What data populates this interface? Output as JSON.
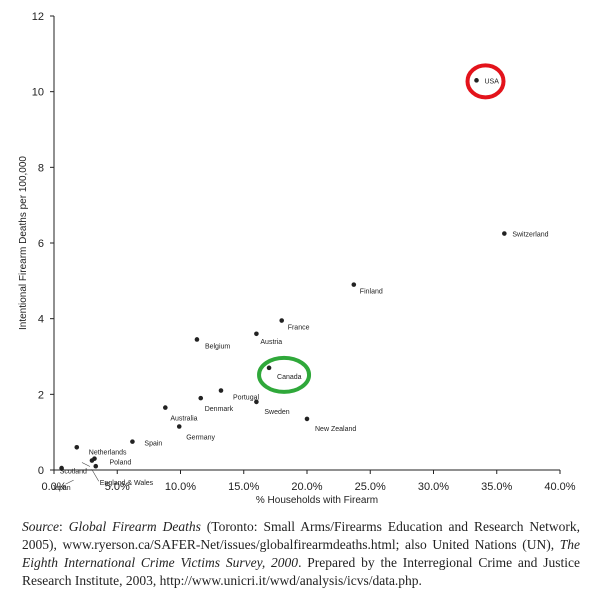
{
  "chart_data": {
    "type": "scatter",
    "xlabel": "% Households with Firearm",
    "ylabel": "Intentional Firearm Deaths per 100,000",
    "xlim": [
      0,
      40
    ],
    "ylim": [
      0,
      12
    ],
    "x_ticks": [
      "0.0%",
      "5.0%",
      "10.0%",
      "15.0%",
      "20.0%",
      "25.0%",
      "30.0%",
      "35.0%",
      "40.0%"
    ],
    "y_ticks": [
      "0",
      "2",
      "4",
      "6",
      "8",
      "10",
      "12"
    ],
    "grid": false,
    "points": [
      {
        "label": "USA",
        "x": 33.4,
        "y": 10.3,
        "highlight": "red"
      },
      {
        "label": "Switzerland",
        "x": 35.6,
        "y": 6.25
      },
      {
        "label": "Finland",
        "x": 23.7,
        "y": 4.9
      },
      {
        "label": "France",
        "x": 18.0,
        "y": 3.95
      },
      {
        "label": "Austria",
        "x": 16.0,
        "y": 3.6
      },
      {
        "label": "Belgium",
        "x": 11.3,
        "y": 3.45
      },
      {
        "label": "Canada",
        "x": 17.0,
        "y": 2.7,
        "highlight": "green"
      },
      {
        "label": "Portugal",
        "x": 13.2,
        "y": 2.1
      },
      {
        "label": "Denmark",
        "x": 11.6,
        "y": 1.9
      },
      {
        "label": "Sweden",
        "x": 16.0,
        "y": 1.8
      },
      {
        "label": "Australia",
        "x": 8.8,
        "y": 1.65
      },
      {
        "label": "New Zealand",
        "x": 20.0,
        "y": 1.35
      },
      {
        "label": "Germany",
        "x": 9.9,
        "y": 1.15
      },
      {
        "label": "Spain",
        "x": 6.2,
        "y": 0.75
      },
      {
        "label": "Netherlands",
        "x": 1.8,
        "y": 0.6
      },
      {
        "label": "Poland",
        "x": 3.2,
        "y": 0.3
      },
      {
        "label": "Scotland",
        "x": 3.0,
        "y": 0.25
      },
      {
        "label": "England & Wales",
        "x": 3.3,
        "y": 0.1
      },
      {
        "label": "Japan",
        "x": 0.6,
        "y": 0.05
      }
    ],
    "colors": {
      "red_circle": "#e3131b",
      "green_circle": "#2fa83a",
      "points": "#222222"
    }
  },
  "source": {
    "prefix": "Source",
    "title1": "Global Firearm Deaths",
    "text1": " (Toronto: Small Arms/Firearms Education and Research Network, 2005), www.ryerson.ca/SAFER-Net/issues/globalfirearmdeaths.html; also United Nations (UN), ",
    "title2": "The Eighth International Crime Victims Survey, 2000",
    "text2": ". Prepared by the Interregional Crime and Justice Research Institute, 2003, http://www.unicri.it/wwd/analysis/icvs/data.php."
  }
}
